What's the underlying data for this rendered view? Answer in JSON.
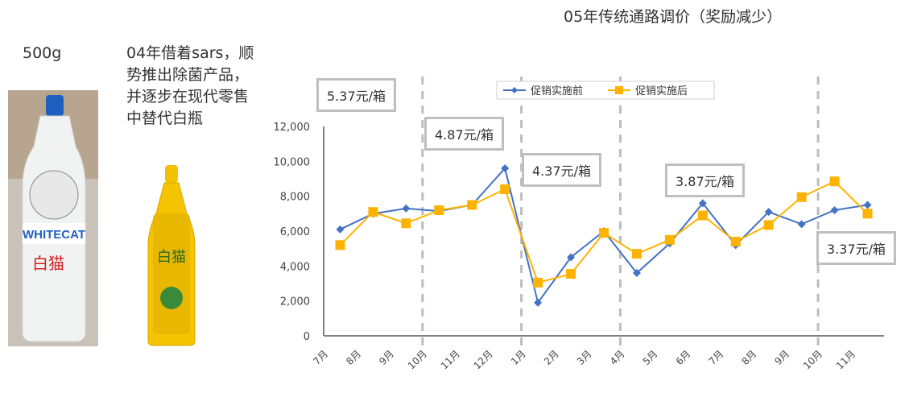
{
  "slide": {
    "title": "05年传统通路调价（奖励减少）",
    "weight_label": "500g",
    "description": "04年借着sars，顺势推出除菌产品，并逐步在现代零售中替代白瓶",
    "white_bottle_brand": "WHITECAT 白猫",
    "yellow_bottle_brand": "白猫"
  },
  "price_labels": [
    "5.37元/箱",
    "4.87元/箱",
    "4.37元/箱",
    "3.87元/箱",
    "3.37元/箱"
  ],
  "chart_data": {
    "type": "line",
    "title": "",
    "xlabel": "",
    "ylabel": "",
    "ylim": [
      0,
      12000
    ],
    "yticks": [
      "0",
      "2,000",
      "4,000",
      "6,000",
      "8,000",
      "10,000",
      "12,000"
    ],
    "categories": [
      "7月",
      "8月",
      "9月",
      "10月",
      "11月",
      "12月",
      "1月",
      "2月",
      "3月",
      "4月",
      "5月",
      "6月",
      "7月",
      "8月",
      "9月",
      "10月",
      "11月"
    ],
    "legend_position": "top",
    "grid": false,
    "price_change_boundaries_after_index": [
      2,
      5,
      8,
      14
    ],
    "series": [
      {
        "name": "促销实施前",
        "color": "#4472c4",
        "marker": "diamond",
        "values": [
          6100,
          7000,
          7300,
          7150,
          7500,
          9600,
          1900,
          4500,
          6000,
          3600,
          5300,
          7600,
          5200,
          7100,
          6400,
          7200,
          7500
        ]
      },
      {
        "name": "促销实施后",
        "color": "#ffb300",
        "marker": "square",
        "values": [
          5200,
          7100,
          6450,
          7200,
          7500,
          8400,
          3050,
          3550,
          5900,
          4700,
          5500,
          6900,
          5400,
          6350,
          7950,
          8850,
          7000
        ]
      }
    ]
  }
}
